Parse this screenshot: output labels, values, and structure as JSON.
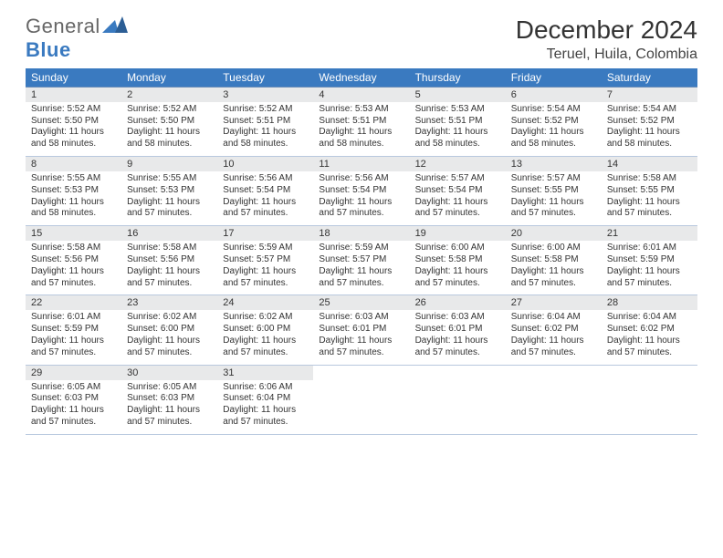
{
  "colors": {
    "header_bg": "#3a7ac0",
    "header_fg": "#ffffff",
    "daynum_bg": "#e8e9ea",
    "rule": "#6a8db8",
    "logo_blue": "#3a7ac0",
    "logo_grey": "#666666"
  },
  "logo": {
    "general": "General",
    "blue": "Blue"
  },
  "title": "December 2024",
  "location": "Teruel, Huila, Colombia",
  "dow": [
    "Sunday",
    "Monday",
    "Tuesday",
    "Wednesday",
    "Thursday",
    "Friday",
    "Saturday"
  ],
  "weeks": [
    [
      {
        "n": "1",
        "sr": "5:52 AM",
        "ss": "5:50 PM",
        "dl": "11 hours and 58 minutes."
      },
      {
        "n": "2",
        "sr": "5:52 AM",
        "ss": "5:50 PM",
        "dl": "11 hours and 58 minutes."
      },
      {
        "n": "3",
        "sr": "5:52 AM",
        "ss": "5:51 PM",
        "dl": "11 hours and 58 minutes."
      },
      {
        "n": "4",
        "sr": "5:53 AM",
        "ss": "5:51 PM",
        "dl": "11 hours and 58 minutes."
      },
      {
        "n": "5",
        "sr": "5:53 AM",
        "ss": "5:51 PM",
        "dl": "11 hours and 58 minutes."
      },
      {
        "n": "6",
        "sr": "5:54 AM",
        "ss": "5:52 PM",
        "dl": "11 hours and 58 minutes."
      },
      {
        "n": "7",
        "sr": "5:54 AM",
        "ss": "5:52 PM",
        "dl": "11 hours and 58 minutes."
      }
    ],
    [
      {
        "n": "8",
        "sr": "5:55 AM",
        "ss": "5:53 PM",
        "dl": "11 hours and 58 minutes."
      },
      {
        "n": "9",
        "sr": "5:55 AM",
        "ss": "5:53 PM",
        "dl": "11 hours and 57 minutes."
      },
      {
        "n": "10",
        "sr": "5:56 AM",
        "ss": "5:54 PM",
        "dl": "11 hours and 57 minutes."
      },
      {
        "n": "11",
        "sr": "5:56 AM",
        "ss": "5:54 PM",
        "dl": "11 hours and 57 minutes."
      },
      {
        "n": "12",
        "sr": "5:57 AM",
        "ss": "5:54 PM",
        "dl": "11 hours and 57 minutes."
      },
      {
        "n": "13",
        "sr": "5:57 AM",
        "ss": "5:55 PM",
        "dl": "11 hours and 57 minutes."
      },
      {
        "n": "14",
        "sr": "5:58 AM",
        "ss": "5:55 PM",
        "dl": "11 hours and 57 minutes."
      }
    ],
    [
      {
        "n": "15",
        "sr": "5:58 AM",
        "ss": "5:56 PM",
        "dl": "11 hours and 57 minutes."
      },
      {
        "n": "16",
        "sr": "5:58 AM",
        "ss": "5:56 PM",
        "dl": "11 hours and 57 minutes."
      },
      {
        "n": "17",
        "sr": "5:59 AM",
        "ss": "5:57 PM",
        "dl": "11 hours and 57 minutes."
      },
      {
        "n": "18",
        "sr": "5:59 AM",
        "ss": "5:57 PM",
        "dl": "11 hours and 57 minutes."
      },
      {
        "n": "19",
        "sr": "6:00 AM",
        "ss": "5:58 PM",
        "dl": "11 hours and 57 minutes."
      },
      {
        "n": "20",
        "sr": "6:00 AM",
        "ss": "5:58 PM",
        "dl": "11 hours and 57 minutes."
      },
      {
        "n": "21",
        "sr": "6:01 AM",
        "ss": "5:59 PM",
        "dl": "11 hours and 57 minutes."
      }
    ],
    [
      {
        "n": "22",
        "sr": "6:01 AM",
        "ss": "5:59 PM",
        "dl": "11 hours and 57 minutes."
      },
      {
        "n": "23",
        "sr": "6:02 AM",
        "ss": "6:00 PM",
        "dl": "11 hours and 57 minutes."
      },
      {
        "n": "24",
        "sr": "6:02 AM",
        "ss": "6:00 PM",
        "dl": "11 hours and 57 minutes."
      },
      {
        "n": "25",
        "sr": "6:03 AM",
        "ss": "6:01 PM",
        "dl": "11 hours and 57 minutes."
      },
      {
        "n": "26",
        "sr": "6:03 AM",
        "ss": "6:01 PM",
        "dl": "11 hours and 57 minutes."
      },
      {
        "n": "27",
        "sr": "6:04 AM",
        "ss": "6:02 PM",
        "dl": "11 hours and 57 minutes."
      },
      {
        "n": "28",
        "sr": "6:04 AM",
        "ss": "6:02 PM",
        "dl": "11 hours and 57 minutes."
      }
    ],
    [
      {
        "n": "29",
        "sr": "6:05 AM",
        "ss": "6:03 PM",
        "dl": "11 hours and 57 minutes."
      },
      {
        "n": "30",
        "sr": "6:05 AM",
        "ss": "6:03 PM",
        "dl": "11 hours and 57 minutes."
      },
      {
        "n": "31",
        "sr": "6:06 AM",
        "ss": "6:04 PM",
        "dl": "11 hours and 57 minutes."
      },
      null,
      null,
      null,
      null
    ]
  ],
  "labels": {
    "sunrise": "Sunrise: ",
    "sunset": "Sunset: ",
    "daylight": "Daylight: "
  }
}
